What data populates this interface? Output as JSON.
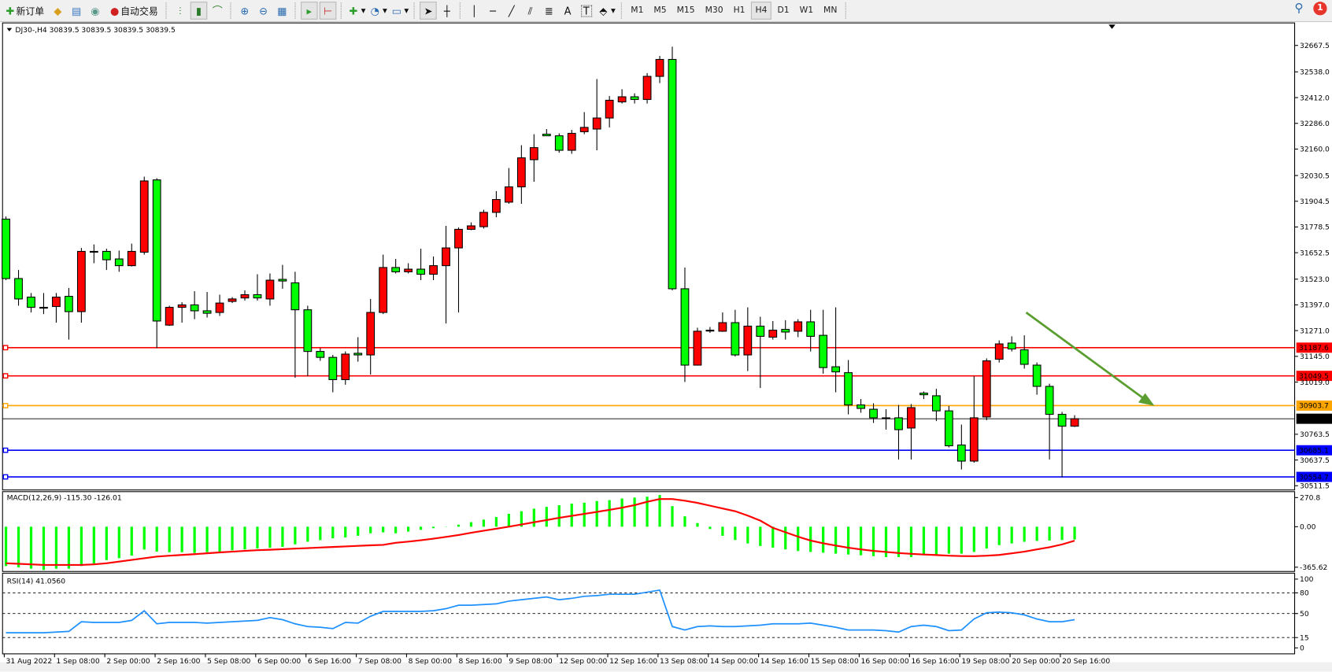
{
  "toolbar": {
    "new_order_label": "新订单",
    "auto_trading_label": "自动交易",
    "timeframes": [
      "M1",
      "M5",
      "M15",
      "M30",
      "H1",
      "H4",
      "D1",
      "W1",
      "MN"
    ],
    "active_timeframe": "H4",
    "notification_count": "1"
  },
  "chart": {
    "header": "DJ30-,H4  30839.5 30839.5 30839.5 30839.5",
    "colors": {
      "bull": "#FF0000",
      "bear": "#00FF00",
      "outline": "#000000",
      "arrow": "#5A9E2F"
    },
    "price_ticks": [
      "32667.5",
      "32538.0",
      "32412.0",
      "32286.0",
      "32160.0",
      "32030.5",
      "31904.5",
      "31778.5",
      "31652.5",
      "31523.0",
      "31397.0",
      "31271.0",
      "31145.0",
      "31019.0",
      "30763.5",
      "30637.5",
      "30511.5"
    ],
    "levels": [
      {
        "price": "31187.6",
        "color": "#FF0000"
      },
      {
        "price": "31049.5",
        "color": "#FF0000"
      },
      {
        "price": "30903.7",
        "color": "#FFA500"
      },
      {
        "price": "30685.1",
        "color": "#0000FF"
      },
      {
        "price": "30554.7",
        "color": "#0000FF"
      }
    ],
    "bid": {
      "price": "30839.5",
      "color": "#000000"
    },
    "time_labels": [
      "31 Aug 2022",
      "1 Sep 08:00",
      "2 Sep 00:00",
      "2 Sep 16:00",
      "5 Sep 08:00",
      "6 Sep 00:00",
      "6 Sep 16:00",
      "7 Sep 08:00",
      "8 Sep 00:00",
      "8 Sep 16:00",
      "9 Sep 08:00",
      "12 Sep 00:00",
      "12 Sep 16:00",
      "13 Sep 08:00",
      "14 Sep 00:00",
      "14 Sep 16:00",
      "15 Sep 08:00",
      "16 Sep 00:00",
      "16 Sep 16:00",
      "19 Sep 08:00",
      "20 Sep 00:00",
      "20 Sep 16:00"
    ],
    "ohlc": [
      [
        31817,
        31830,
        31518,
        31526
      ],
      [
        31526,
        31568,
        31393,
        31426
      ],
      [
        31435,
        31455,
        31360,
        31385
      ],
      [
        31385,
        31455,
        31352,
        31383
      ],
      [
        31389,
        31455,
        31310,
        31435
      ],
      [
        31439,
        31480,
        31227,
        31364
      ],
      [
        31364,
        31676,
        31310,
        31659
      ],
      [
        31659,
        31693,
        31601,
        31657
      ],
      [
        31659,
        31672,
        31568,
        31618
      ],
      [
        31622,
        31663,
        31559,
        31589
      ],
      [
        31589,
        31697,
        31585,
        31659
      ],
      [
        31655,
        32025,
        31643,
        32004
      ],
      [
        32009,
        32017,
        31185,
        31318
      ],
      [
        31298,
        31393,
        31294,
        31385
      ],
      [
        31385,
        31410,
        31310,
        31397
      ],
      [
        31397,
        31464,
        31327,
        31368
      ],
      [
        31368,
        31460,
        31335,
        31356
      ],
      [
        31360,
        31447,
        31343,
        31406
      ],
      [
        31414,
        31435,
        31406,
        31426
      ],
      [
        31431,
        31468,
        31418,
        31447
      ],
      [
        31447,
        31547,
        31418,
        31431
      ],
      [
        31426,
        31551,
        31393,
        31518
      ],
      [
        31522,
        31593,
        31476,
        31514
      ],
      [
        31505,
        31559,
        31040,
        31373
      ],
      [
        31373,
        31393,
        31048,
        31169
      ],
      [
        31169,
        31185,
        31123,
        31140
      ],
      [
        31140,
        31152,
        30969,
        31031
      ],
      [
        31031,
        31169,
        31006,
        31156
      ],
      [
        31160,
        31239,
        31119,
        31152
      ],
      [
        31152,
        31426,
        31056,
        31360
      ],
      [
        31360,
        31643,
        31352,
        31580
      ],
      [
        31580,
        31622,
        31551,
        31559
      ],
      [
        31559,
        31601,
        31551,
        31572
      ],
      [
        31572,
        31672,
        31518,
        31547
      ],
      [
        31547,
        31634,
        31518,
        31589
      ],
      [
        31589,
        31784,
        31306,
        31676
      ],
      [
        31676,
        31776,
        31360,
        31767
      ],
      [
        31767,
        31801,
        31763,
        31784
      ],
      [
        31780,
        31863,
        31771,
        31850
      ],
      [
        31850,
        31954,
        31826,
        31913
      ],
      [
        31900,
        32067,
        31892,
        31975
      ],
      [
        31975,
        32179,
        31892,
        32117
      ],
      [
        32108,
        32233,
        32000,
        32167
      ],
      [
        32233,
        32258,
        32225,
        32225
      ],
      [
        32225,
        32237,
        32142,
        32154
      ],
      [
        32154,
        32254,
        32137,
        32237
      ],
      [
        32245,
        32341,
        32233,
        32266
      ],
      [
        32258,
        32503,
        32154,
        32312
      ],
      [
        32312,
        32420,
        32266,
        32399
      ],
      [
        32391,
        32453,
        32383,
        32416
      ],
      [
        32416,
        32433,
        32383,
        32403
      ],
      [
        32403,
        32532,
        32383,
        32516
      ],
      [
        32516,
        32616,
        32483,
        32599
      ],
      [
        32599,
        32661,
        31468,
        31476
      ],
      [
        31476,
        31580,
        31019,
        31102
      ],
      [
        31102,
        31285,
        31100,
        31268
      ],
      [
        31273,
        31289,
        31260,
        31270
      ],
      [
        31268,
        31360,
        31265,
        31310
      ],
      [
        31310,
        31373,
        31144,
        31152
      ],
      [
        31152,
        31385,
        31073,
        31293
      ],
      [
        31293,
        31339,
        30990,
        31243
      ],
      [
        31239,
        31318,
        31227,
        31273
      ],
      [
        31277,
        31322,
        31227,
        31264
      ],
      [
        31268,
        31327,
        31239,
        31314
      ],
      [
        31314,
        31373,
        31169,
        31243
      ],
      [
        31248,
        31373,
        31060,
        31090
      ],
      [
        31094,
        31385,
        30969,
        31069
      ],
      [
        31065,
        31127,
        30861,
        30907
      ],
      [
        30907,
        30936,
        30869,
        30890
      ],
      [
        30886,
        30915,
        30819,
        30844
      ],
      [
        30844,
        30886,
        30786,
        30842
      ],
      [
        30844,
        30907,
        30640,
        30786
      ],
      [
        30794,
        30911,
        30640,
        30894
      ],
      [
        30965,
        30973,
        30936,
        30957
      ],
      [
        30952,
        30986,
        30828,
        30878
      ],
      [
        30878,
        30902,
        30699,
        30707
      ],
      [
        30711,
        30811,
        30591,
        30632
      ],
      [
        30632,
        31048,
        30624,
        30844
      ],
      [
        30848,
        31135,
        30832,
        31123
      ],
      [
        31131,
        31223,
        31115,
        31206
      ],
      [
        31210,
        31243,
        31169,
        31181
      ],
      [
        31177,
        31248,
        31085,
        31106
      ],
      [
        31102,
        31115,
        30957,
        30998
      ],
      [
        30998,
        31011,
        30640,
        30861
      ],
      [
        30861,
        30873,
        30553,
        30803
      ],
      [
        30803,
        30857,
        30799,
        30839.5
      ]
    ]
  },
  "macd": {
    "label": "MACD(12,26,9) -115.30 -126.01",
    "ticks": [
      "270.8",
      "0.00",
      "-365.62"
    ],
    "hist_color": "#00FF00",
    "signal_color": "#FF0000",
    "main": [
      -355,
      -367,
      -379,
      -391,
      -379,
      -379,
      -355,
      -332,
      -301,
      -284,
      -261,
      -206,
      -225,
      -230,
      -230,
      -237,
      -230,
      -225,
      -213,
      -205,
      -197,
      -190,
      -182,
      -159,
      -136,
      -121,
      -105,
      -97,
      -82,
      -59,
      -51,
      -59,
      -44,
      -28,
      -13,
      2,
      18,
      41,
      64,
      87,
      117,
      140,
      163,
      179,
      194,
      209,
      217,
      232,
      240,
      255,
      263,
      271,
      286,
      186,
      94,
      33,
      -21,
      -82,
      -120,
      -151,
      -174,
      -189,
      -205,
      -220,
      -228,
      -235,
      -243,
      -251,
      -258,
      -266,
      -274,
      -274,
      -274,
      -258,
      -251,
      -243,
      -243,
      -228,
      -197,
      -166,
      -151,
      -136,
      -128,
      -125,
      -120,
      -115.3
    ],
    "signal": [
      -330,
      -335,
      -340,
      -345,
      -345,
      -345,
      -345,
      -340,
      -330,
      -315,
      -300,
      -285,
      -270,
      -262,
      -255,
      -248,
      -240,
      -232,
      -225,
      -218,
      -212,
      -208,
      -203,
      -198,
      -193,
      -188,
      -183,
      -178,
      -173,
      -168,
      -164,
      -145,
      -135,
      -122,
      -108,
      -92,
      -75,
      -55,
      -36,
      -18,
      0,
      20,
      40,
      60,
      80,
      98,
      116,
      134,
      152,
      172,
      195,
      225,
      250,
      250,
      235,
      215,
      190,
      165,
      140,
      100,
      55,
      -10,
      -50,
      -90,
      -125,
      -150,
      -170,
      -190,
      -205,
      -218,
      -228,
      -238,
      -245,
      -251,
      -256,
      -262,
      -265,
      -266,
      -262,
      -255,
      -240,
      -225,
      -205,
      -185,
      -160,
      -126.01
    ]
  },
  "rsi": {
    "label": "RSI(14) 41.0560",
    "ticks": [
      "100",
      "80",
      "50",
      "15",
      "0"
    ],
    "levels": [
      80,
      50,
      15
    ],
    "color": "#1E90FF",
    "values": [
      22,
      22,
      22,
      22,
      23,
      24,
      38,
      37,
      37,
      37,
      40,
      54,
      35,
      37,
      37,
      37,
      36,
      37,
      38,
      39,
      40,
      44,
      41,
      35,
      31,
      30,
      28,
      37,
      36,
      46,
      53,
      53,
      53,
      53,
      54,
      57,
      62,
      62,
      63,
      64,
      68,
      70,
      72,
      74,
      70,
      72,
      75,
      76,
      78,
      78,
      78,
      81,
      84,
      31,
      26,
      31,
      32,
      31,
      31,
      32,
      33,
      35,
      35,
      35,
      36,
      33,
      30,
      26,
      26,
      26,
      25,
      23,
      31,
      33,
      31,
      25,
      26,
      42,
      51,
      52,
      51,
      48,
      42,
      38,
      38,
      41.056
    ]
  }
}
